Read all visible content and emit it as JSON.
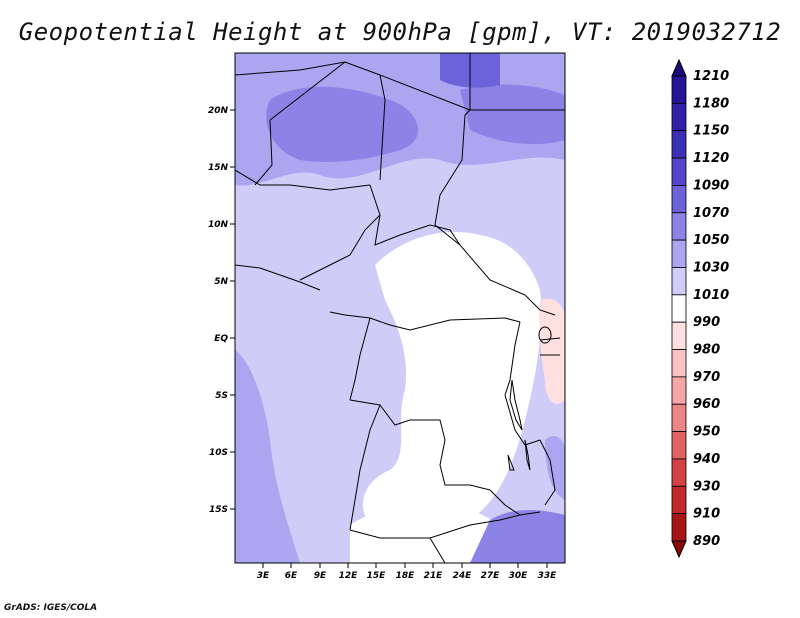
{
  "title": "Geopotential Height at 900hPa [gpm], VT: 2019032712",
  "credit": "GrADS: IGES/COLA",
  "map": {
    "lat_labels": [
      "20N",
      "15N",
      "10N",
      "5N",
      "EQ",
      "5S",
      "10S",
      "15S"
    ],
    "lon_labels": [
      "3E",
      "6E",
      "9E",
      "12E",
      "15E",
      "18E",
      "21E",
      "24E",
      "27E",
      "30E",
      "33E"
    ]
  },
  "colorbar": {
    "labels": [
      "1210",
      "1180",
      "1150",
      "1120",
      "1090",
      "1070",
      "1050",
      "1030",
      "1010",
      "990",
      "980",
      "970",
      "960",
      "950",
      "940",
      "930",
      "910",
      "890"
    ],
    "colors": [
      "#1a0b7a",
      "#231594",
      "#2e22a8",
      "#3a30b8",
      "#5147c8",
      "#6c63d8",
      "#8b84e6",
      "#aba6f0",
      "#cfcdf8",
      "#ffffff",
      "#ffe0e0",
      "#fbc4c4",
      "#f5a6a6",
      "#ec8585",
      "#e06363",
      "#d14242",
      "#c22a2a",
      "#a81515",
      "#8a0a0a"
    ]
  }
}
